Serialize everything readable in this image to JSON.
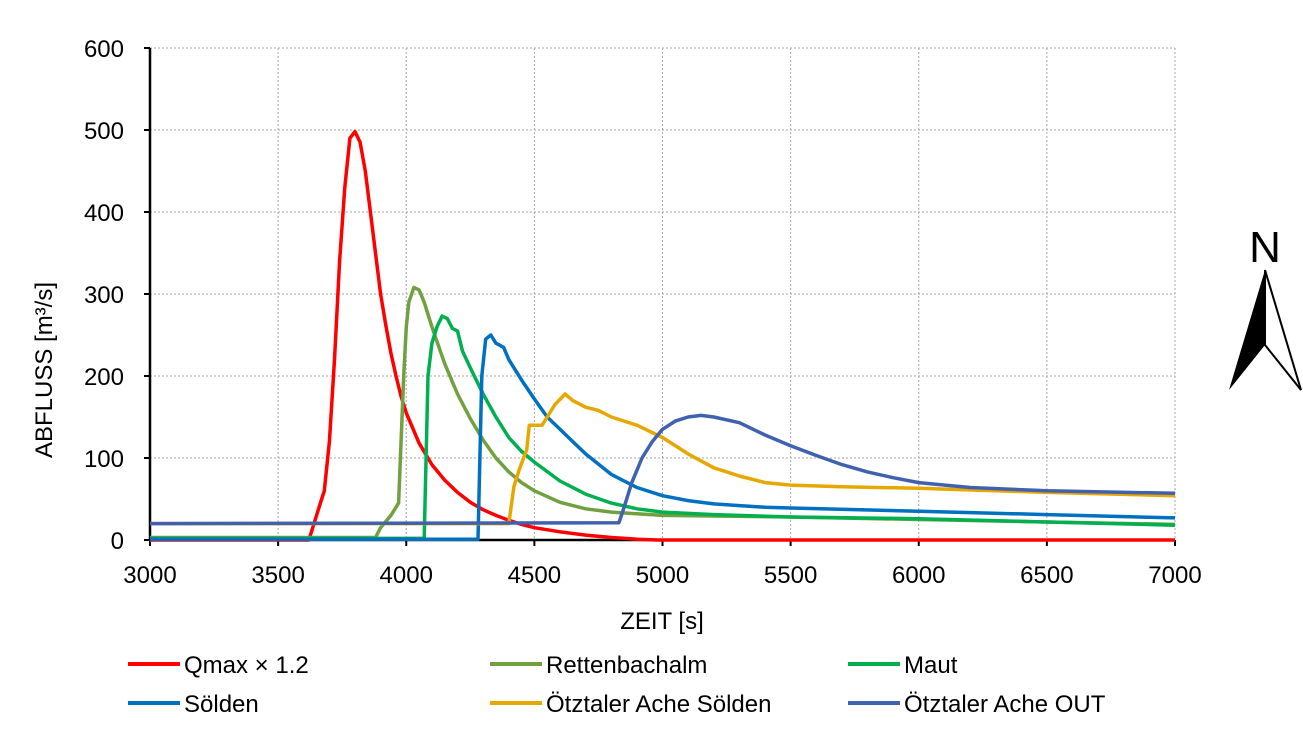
{
  "chart_data": {
    "type": "line",
    "xlabel": "ZEIT [s]",
    "ylabel": "ABFLUSS [m³/s]",
    "xlim": [
      3000,
      7000
    ],
    "ylim": [
      0,
      600
    ],
    "x_ticks": [
      3000,
      3500,
      4000,
      4500,
      5000,
      5500,
      6000,
      6500,
      7000
    ],
    "y_ticks": [
      0,
      100,
      200,
      300,
      400,
      500,
      600
    ],
    "grid": true,
    "legend_placement": "bottom",
    "series": [
      {
        "name": "Qmax × 1.2",
        "color": "#ff0000",
        "points": [
          [
            3000,
            0
          ],
          [
            3620,
            0
          ],
          [
            3640,
            20
          ],
          [
            3660,
            40
          ],
          [
            3680,
            60
          ],
          [
            3700,
            120
          ],
          [
            3720,
            220
          ],
          [
            3740,
            340
          ],
          [
            3760,
            430
          ],
          [
            3780,
            490
          ],
          [
            3800,
            498
          ],
          [
            3820,
            485
          ],
          [
            3840,
            450
          ],
          [
            3860,
            400
          ],
          [
            3880,
            350
          ],
          [
            3900,
            300
          ],
          [
            3920,
            262
          ],
          [
            3940,
            228
          ],
          [
            3960,
            200
          ],
          [
            3980,
            175
          ],
          [
            4000,
            155
          ],
          [
            4050,
            118
          ],
          [
            4100,
            92
          ],
          [
            4150,
            73
          ],
          [
            4200,
            58
          ],
          [
            4250,
            46
          ],
          [
            4300,
            37
          ],
          [
            4350,
            30
          ],
          [
            4400,
            24
          ],
          [
            4450,
            19
          ],
          [
            4500,
            15
          ],
          [
            4600,
            10
          ],
          [
            4700,
            6
          ],
          [
            4800,
            3
          ],
          [
            4900,
            1
          ],
          [
            4980,
            0
          ],
          [
            7000,
            0
          ]
        ]
      },
      {
        "name": "Rettenbachalm",
        "color": "#70a040",
        "points": [
          [
            3000,
            3
          ],
          [
            3880,
            3
          ],
          [
            3900,
            15
          ],
          [
            3940,
            30
          ],
          [
            3970,
            45
          ],
          [
            3990,
            200
          ],
          [
            4000,
            260
          ],
          [
            4010,
            290
          ],
          [
            4030,
            308
          ],
          [
            4050,
            305
          ],
          [
            4070,
            290
          ],
          [
            4100,
            260
          ],
          [
            4150,
            215
          ],
          [
            4200,
            178
          ],
          [
            4250,
            148
          ],
          [
            4300,
            122
          ],
          [
            4350,
            100
          ],
          [
            4400,
            83
          ],
          [
            4450,
            70
          ],
          [
            4500,
            60
          ],
          [
            4600,
            46
          ],
          [
            4700,
            38
          ],
          [
            4800,
            34
          ],
          [
            4900,
            32
          ],
          [
            5000,
            30
          ],
          [
            5500,
            28
          ],
          [
            6000,
            25
          ],
          [
            6500,
            22
          ],
          [
            7000,
            19
          ]
        ]
      },
      {
        "name": "Maut",
        "color": "#00b050",
        "points": [
          [
            3000,
            2
          ],
          [
            4070,
            2
          ],
          [
            4085,
            200
          ],
          [
            4100,
            240
          ],
          [
            4120,
            260
          ],
          [
            4140,
            273
          ],
          [
            4160,
            270
          ],
          [
            4180,
            258
          ],
          [
            4200,
            255
          ],
          [
            4220,
            230
          ],
          [
            4250,
            210
          ],
          [
            4300,
            178
          ],
          [
            4350,
            150
          ],
          [
            4400,
            125
          ],
          [
            4450,
            108
          ],
          [
            4500,
            95
          ],
          [
            4600,
            72
          ],
          [
            4700,
            56
          ],
          [
            4800,
            45
          ],
          [
            4900,
            38
          ],
          [
            5000,
            34
          ],
          [
            5200,
            31
          ],
          [
            5500,
            28
          ],
          [
            6000,
            26
          ],
          [
            6500,
            22
          ],
          [
            7000,
            18
          ]
        ]
      },
      {
        "name": "Sölden",
        "color": "#0070c0",
        "points": [
          [
            3000,
            1
          ],
          [
            4280,
            1
          ],
          [
            4295,
            200
          ],
          [
            4310,
            245
          ],
          [
            4330,
            250
          ],
          [
            4350,
            240
          ],
          [
            4380,
            235
          ],
          [
            4400,
            220
          ],
          [
            4450,
            195
          ],
          [
            4500,
            172
          ],
          [
            4550,
            150
          ],
          [
            4600,
            135
          ],
          [
            4650,
            120
          ],
          [
            4700,
            105
          ],
          [
            4800,
            80
          ],
          [
            4900,
            64
          ],
          [
            5000,
            54
          ],
          [
            5100,
            48
          ],
          [
            5200,
            44
          ],
          [
            5300,
            42
          ],
          [
            5400,
            40
          ],
          [
            5500,
            39
          ],
          [
            6000,
            35
          ],
          [
            6500,
            31
          ],
          [
            7000,
            27
          ]
        ]
      },
      {
        "name": "Ötztaler Ache Sölden",
        "color": "#e6a800",
        "points": [
          [
            3000,
            20
          ],
          [
            4400,
            20
          ],
          [
            4420,
            65
          ],
          [
            4440,
            85
          ],
          [
            4470,
            110
          ],
          [
            4480,
            140
          ],
          [
            4500,
            140
          ],
          [
            4530,
            140
          ],
          [
            4550,
            150
          ],
          [
            4580,
            165
          ],
          [
            4620,
            178
          ],
          [
            4650,
            170
          ],
          [
            4700,
            162
          ],
          [
            4750,
            158
          ],
          [
            4800,
            150
          ],
          [
            4900,
            140
          ],
          [
            5000,
            125
          ],
          [
            5100,
            105
          ],
          [
            5200,
            88
          ],
          [
            5300,
            78
          ],
          [
            5400,
            70
          ],
          [
            5500,
            67
          ],
          [
            5700,
            65
          ],
          [
            6000,
            63
          ],
          [
            6500,
            58
          ],
          [
            7000,
            54
          ]
        ]
      },
      {
        "name": "Ötztaler Ache OUT",
        "color": "#4060b0",
        "points": [
          [
            3000,
            20
          ],
          [
            4830,
            21
          ],
          [
            4850,
            40
          ],
          [
            4880,
            70
          ],
          [
            4920,
            100
          ],
          [
            4960,
            120
          ],
          [
            5000,
            135
          ],
          [
            5050,
            145
          ],
          [
            5100,
            150
          ],
          [
            5150,
            152
          ],
          [
            5200,
            150
          ],
          [
            5300,
            143
          ],
          [
            5400,
            128
          ],
          [
            5500,
            115
          ],
          [
            5600,
            103
          ],
          [
            5700,
            92
          ],
          [
            5800,
            83
          ],
          [
            5900,
            76
          ],
          [
            6000,
            70
          ],
          [
            6200,
            64
          ],
          [
            6500,
            60
          ],
          [
            7000,
            57
          ]
        ]
      }
    ]
  },
  "north_arrow": {
    "label": "N"
  }
}
